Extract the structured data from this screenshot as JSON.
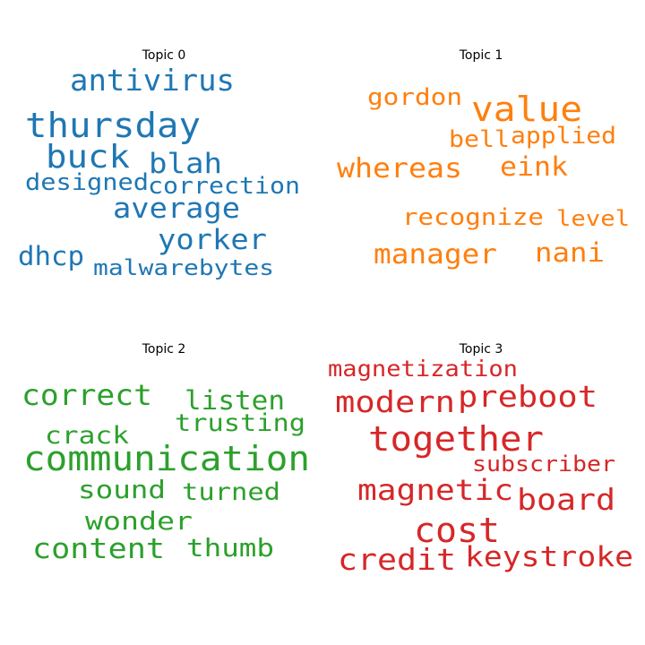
{
  "chart_data": [
    {
      "type": "wordcloud",
      "title": "Topic 0",
      "color": "#1f77b4",
      "words": [
        {
          "text": "antivirus",
          "weight": 0.78
        },
        {
          "text": "thursday",
          "weight": 1.0
        },
        {
          "text": "buck",
          "weight": 0.97
        },
        {
          "text": "blah",
          "weight": 0.78
        },
        {
          "text": "designed",
          "weight": 0.6
        },
        {
          "text": "correction",
          "weight": 0.6
        },
        {
          "text": "average",
          "weight": 0.78
        },
        {
          "text": "yorker",
          "weight": 0.78
        },
        {
          "text": "dhcp",
          "weight": 0.7
        },
        {
          "text": "malwarebytes",
          "weight": 0.6
        }
      ]
    },
    {
      "type": "wordcloud",
      "title": "Topic 1",
      "color": "#ff7f0e",
      "words": [
        {
          "text": "gordon",
          "weight": 0.65
        },
        {
          "text": "value",
          "weight": 1.0
        },
        {
          "text": "bell",
          "weight": 0.65
        },
        {
          "text": "applied",
          "weight": 0.65
        },
        {
          "text": "whereas",
          "weight": 0.78
        },
        {
          "text": "eink",
          "weight": 0.78
        },
        {
          "text": "recognize",
          "weight": 0.65
        },
        {
          "text": "level",
          "weight": 0.6
        },
        {
          "text": "manager",
          "weight": 0.78
        },
        {
          "text": "nani",
          "weight": 0.78
        }
      ]
    },
    {
      "type": "wordcloud",
      "title": "Topic 2",
      "color": "#2ca02c",
      "words": [
        {
          "text": "correct",
          "weight": 0.85
        },
        {
          "text": "listen",
          "weight": 0.78
        },
        {
          "text": "trusting",
          "weight": 0.7
        },
        {
          "text": "crack",
          "weight": 0.7
        },
        {
          "text": "communication",
          "weight": 1.0
        },
        {
          "text": "sound",
          "weight": 0.75
        },
        {
          "text": "turned",
          "weight": 0.7
        },
        {
          "text": "wonder",
          "weight": 0.75
        },
        {
          "text": "content",
          "weight": 0.85
        },
        {
          "text": "thumb",
          "weight": 0.75
        }
      ]
    },
    {
      "type": "wordcloud",
      "title": "Topic 3",
      "color": "#d62728",
      "words": [
        {
          "text": "magnetization",
          "weight": 0.62
        },
        {
          "text": "modern",
          "weight": 0.88
        },
        {
          "text": "preboot",
          "weight": 0.88
        },
        {
          "text": "together",
          "weight": 1.0
        },
        {
          "text": "subscriber",
          "weight": 0.62
        },
        {
          "text": "magnetic",
          "weight": 0.88
        },
        {
          "text": "board",
          "weight": 0.88
        },
        {
          "text": "cost",
          "weight": 1.0
        },
        {
          "text": "credit",
          "weight": 0.88
        },
        {
          "text": "keystroke",
          "weight": 0.82
        }
      ]
    }
  ]
}
